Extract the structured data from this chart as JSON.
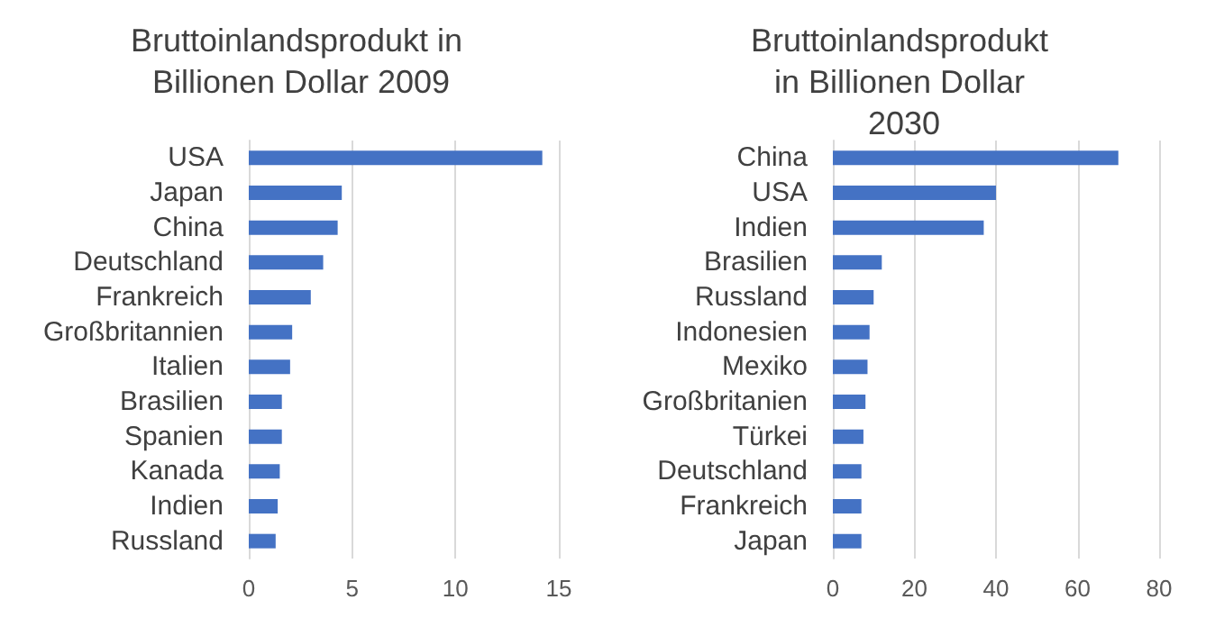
{
  "chart_data": [
    {
      "type": "bar",
      "orientation": "horizontal",
      "title": "Bruttoinlandsprodukt in Billionen Dollar 2009",
      "categories": [
        "USA",
        "Japan",
        "China",
        "Deutschland",
        "Frankreich",
        "Großbritannien",
        "Italien",
        "Brasilien",
        "Spanien",
        "Kanada",
        "Indien",
        "Russland"
      ],
      "values": [
        14.2,
        4.5,
        4.3,
        3.6,
        3.0,
        2.1,
        2.0,
        1.6,
        1.6,
        1.5,
        1.4,
        1.3
      ],
      "color": "#4472c4",
      "xlim": [
        0,
        15
      ],
      "xticks": [
        0,
        5,
        10,
        15
      ],
      "grid": "x"
    },
    {
      "type": "bar",
      "orientation": "horizontal",
      "title": "Bruttoinlandsprodukt in Billionen Dollar 2030",
      "categories": [
        "China",
        "USA",
        "Indien",
        "Brasilien",
        "Russland",
        "Indonesien",
        "Mexiko",
        "Großbritanien",
        "Türkei",
        "Deutschland",
        "Frankreich",
        "Japan"
      ],
      "values": [
        70,
        40,
        37,
        12,
        10,
        9,
        8.5,
        8,
        7.5,
        7,
        7,
        7
      ],
      "color": "#4472c4",
      "xlim": [
        0,
        80
      ],
      "xticks": [
        0,
        20,
        40,
        60,
        80
      ],
      "grid": "x"
    }
  ]
}
